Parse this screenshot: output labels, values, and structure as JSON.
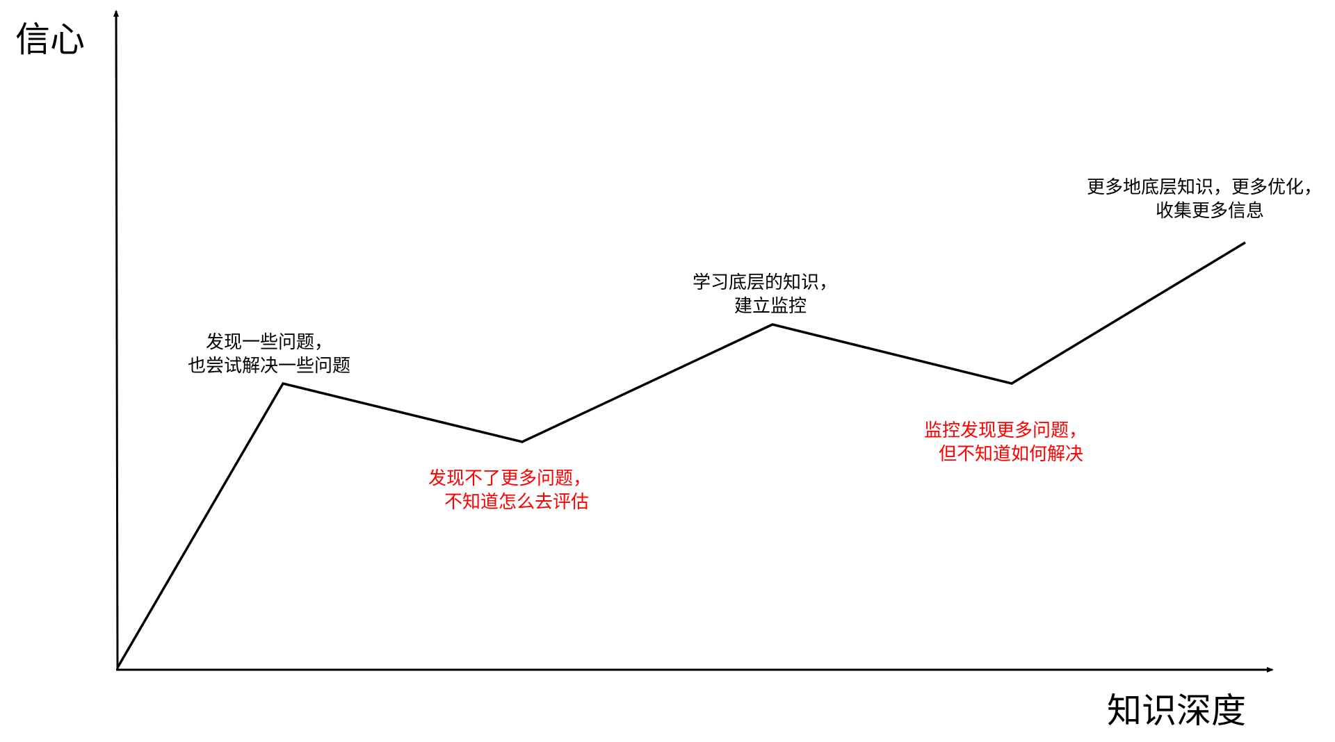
{
  "axes": {
    "y_title": "信心",
    "x_title": "知识深度"
  },
  "annotations": [
    {
      "lines": [
        "发现一些问题，",
        "也尝试解决一些问题"
      ],
      "color": "#000000"
    },
    {
      "lines": [
        "发现不了更多问题，",
        "不知道怎么去评估"
      ],
      "color": "#ff0000"
    },
    {
      "lines": [
        "学习底层的知识，",
        "建立监控"
      ],
      "color": "#000000"
    },
    {
      "lines": [
        "监控发现更多问题，",
        "但不知道如何解决"
      ],
      "color": "#ff0000"
    },
    {
      "lines": [
        "更多地底层知识，更多优化，",
        "收集更多信息"
      ],
      "color": "#000000"
    }
  ],
  "colors": {
    "line": "#000000",
    "warning_text": "#ff0000"
  }
}
